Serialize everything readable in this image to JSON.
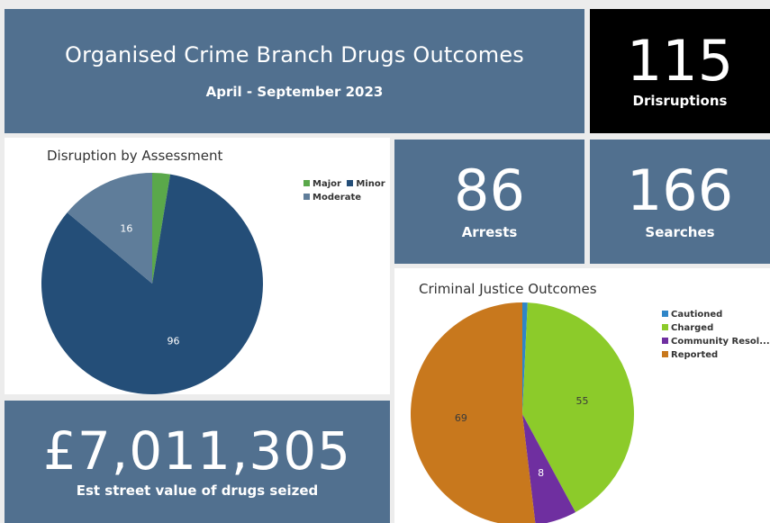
{
  "header": {
    "title": "Organised Crime Branch Drugs Outcomes",
    "period": "April - September 2023"
  },
  "kpis": {
    "disruptions": {
      "value": "115",
      "label": "Drisruptions"
    },
    "arrests": {
      "value": "86",
      "label": "Arrests"
    },
    "searches": {
      "value": "166",
      "label": "Searches"
    },
    "street_value": {
      "value": "£7,011,305",
      "label": "Est street value of drugs seized"
    }
  },
  "colors": {
    "tile_blue": "#51708f",
    "major": "#5aa84a",
    "minor": "#244e78",
    "moderate": "#5f7d9a",
    "cautioned": "#2f86c8",
    "charged": "#8ccb2a",
    "community": "#6f2fa0",
    "reported": "#c8781d"
  },
  "chart_data": [
    {
      "type": "pie",
      "title": "Disruption by Assessment",
      "legend_position": "top-right",
      "slices": [
        {
          "name": "Major",
          "value": 3,
          "color": "#5aa84a",
          "label": ""
        },
        {
          "name": "Minor",
          "value": 96,
          "color": "#244e78",
          "label": "96"
        },
        {
          "name": "Moderate",
          "value": 16,
          "color": "#5f7d9a",
          "label": "16"
        }
      ]
    },
    {
      "type": "pie",
      "title": "Criminal Justice Outcomes",
      "legend_position": "top-right",
      "slices": [
        {
          "name": "Cautioned",
          "value": 1,
          "color": "#2f86c8",
          "label": ""
        },
        {
          "name": "Charged",
          "value": 55,
          "color": "#8ccb2a",
          "label": "55"
        },
        {
          "name": "Community Resol...",
          "value": 8,
          "color": "#6f2fa0",
          "label": "8"
        },
        {
          "name": "Reported",
          "value": 69,
          "color": "#c8781d",
          "label": "69"
        }
      ]
    }
  ]
}
